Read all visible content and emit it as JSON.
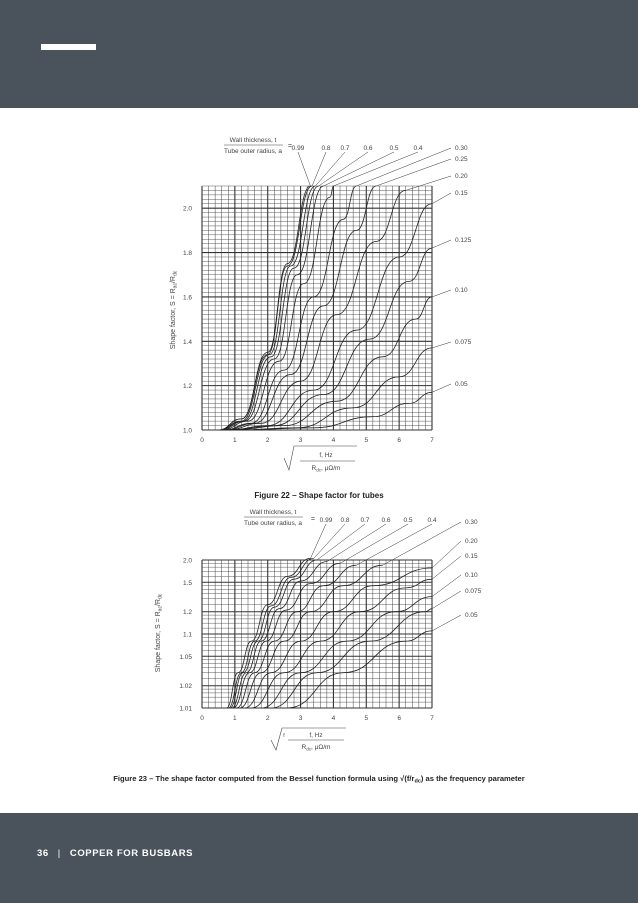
{
  "footer": {
    "page_number": "36",
    "separator": "|",
    "publication": "COPPER FOR BUSBARS"
  },
  "figures": [
    {
      "caption": "Figure 22 – Shape factor for tubes",
      "header_label_top": "Wall thickness, t",
      "header_label_bottom": "Tube outer radius, a",
      "equals": "=",
      "y_axis_label": "Shape factor, S = R",
      "y_axis_sub1": "ac",
      "y_axis_slash": "/R",
      "y_axis_sub2": "dc",
      "x_param_top": "f, Hz",
      "x_param_bottom_pre": "R",
      "x_param_bottom_sub": "dc",
      "x_param_bottom_post": ", μΩ/m",
      "chart_data": {
        "type": "line",
        "xlim": [
          0,
          7
        ],
        "ylim": [
          1.0,
          2.1
        ],
        "x_ticks": [
          "0",
          "1",
          "2",
          "3",
          "4",
          "5",
          "6",
          "7"
        ],
        "y_ticks": [
          {
            "value": 1.0,
            "label": "1.0"
          },
          {
            "value": 1.2,
            "label": "1.2"
          },
          {
            "value": 1.4,
            "label": "1.4"
          },
          {
            "value": 1.6,
            "label": "1.6"
          },
          {
            "value": 1.8,
            "label": "1.8"
          },
          {
            "value": 2.0,
            "label": "2.0"
          }
        ],
        "grid": true,
        "series": [
          {
            "name": "0.99",
            "points": [
              [
                0.5,
                1.0
              ],
              [
                1.2,
                1.05
              ],
              [
                2.0,
                1.35
              ],
              [
                2.6,
                1.75
              ],
              [
                3.3,
                2.1
              ]
            ]
          },
          {
            "name": "0.8",
            "points": [
              [
                0.5,
                1.0
              ],
              [
                1.2,
                1.05
              ],
              [
                2.0,
                1.34
              ],
              [
                2.6,
                1.74
              ],
              [
                3.35,
                2.1
              ]
            ]
          },
          {
            "name": "0.7",
            "points": [
              [
                0.5,
                1.0
              ],
              [
                1.2,
                1.04
              ],
              [
                2.05,
                1.34
              ],
              [
                2.7,
                1.74
              ],
              [
                3.45,
                2.1
              ]
            ]
          },
          {
            "name": "0.6",
            "points": [
              [
                0.5,
                1.0
              ],
              [
                1.25,
                1.04
              ],
              [
                2.1,
                1.33
              ],
              [
                2.8,
                1.73
              ],
              [
                3.55,
                2.1
              ]
            ]
          },
          {
            "name": "0.5",
            "points": [
              [
                0.55,
                1.0
              ],
              [
                1.3,
                1.04
              ],
              [
                2.2,
                1.32
              ],
              [
                2.9,
                1.7
              ],
              [
                3.7,
                2.1
              ]
            ]
          },
          {
            "name": "0.4",
            "points": [
              [
                0.6,
                1.0
              ],
              [
                1.4,
                1.04
              ],
              [
                2.35,
                1.31
              ],
              [
                3.1,
                1.66
              ],
              [
                3.9,
                2.05
              ],
              [
                4.0,
                2.1
              ]
            ]
          },
          {
            "name": "0.30",
            "points": [
              [
                0.65,
                1.0
              ],
              [
                1.5,
                1.03
              ],
              [
                2.5,
                1.27
              ],
              [
                3.4,
                1.6
              ],
              [
                4.3,
                1.95
              ],
              [
                4.7,
                2.1
              ]
            ]
          },
          {
            "name": "0.25",
            "points": [
              [
                0.7,
                1.0
              ],
              [
                1.6,
                1.03
              ],
              [
                2.7,
                1.25
              ],
              [
                3.7,
                1.56
              ],
              [
                4.7,
                1.9
              ],
              [
                5.3,
                2.1
              ]
            ]
          },
          {
            "name": "0.20",
            "points": [
              [
                0.75,
                1.0
              ],
              [
                1.8,
                1.03
              ],
              [
                3.0,
                1.22
              ],
              [
                4.1,
                1.52
              ],
              [
                5.3,
                1.85
              ],
              [
                6.2,
                2.08
              ]
            ]
          },
          {
            "name": "0.15",
            "points": [
              [
                0.8,
                1.0
              ],
              [
                2.0,
                1.02
              ],
              [
                3.4,
                1.18
              ],
              [
                4.7,
                1.45
              ],
              [
                6.0,
                1.78
              ],
              [
                7.0,
                2.02
              ]
            ]
          },
          {
            "name": "0.125",
            "points": [
              [
                0.85,
                1.0
              ],
              [
                2.2,
                1.02
              ],
              [
                3.7,
                1.16
              ],
              [
                5.1,
                1.41
              ],
              [
                6.3,
                1.67
              ],
              [
                7.0,
                1.82
              ]
            ]
          },
          {
            "name": "0.10",
            "points": [
              [
                0.9,
                1.0
              ],
              [
                2.5,
                1.02
              ],
              [
                4.1,
                1.13
              ],
              [
                5.5,
                1.33
              ],
              [
                6.5,
                1.5
              ],
              [
                7.0,
                1.6
              ]
            ]
          },
          {
            "name": "0.075",
            "points": [
              [
                1.0,
                1.0
              ],
              [
                2.9,
                1.01
              ],
              [
                4.6,
                1.1
              ],
              [
                6.0,
                1.24
              ],
              [
                7.0,
                1.37
              ]
            ]
          },
          {
            "name": "0.05",
            "points": [
              [
                1.1,
                1.0
              ],
              [
                3.4,
                1.01
              ],
              [
                5.2,
                1.06
              ],
              [
                6.3,
                1.12
              ],
              [
                7.0,
                1.17
              ]
            ]
          }
        ]
      }
    },
    {
      "caption": "Figure 23 – The shape factor computed from the Bessel function formula using √(f/r",
      "caption_sub": "dc",
      "caption_end": ") as the frequency parameter",
      "header_label_top": "Wall thickness, t",
      "header_label_bottom": "Tube outer radius, a",
      "equals": "=",
      "y_axis_label": "Shape factor, S = R",
      "y_axis_sub1": "ac",
      "y_axis_slash": "/R",
      "y_axis_sub2": "dc",
      "x_param_top": "f, Hz",
      "x_param_bottom_pre": "R",
      "x_param_bottom_sub": "dc",
      "x_param_bottom_post": ", μΩ/m",
      "x_param_small": "f",
      "chart_data": {
        "type": "line",
        "xlim": [
          0,
          7
        ],
        "y_scale": "log(S-1)",
        "ylim": [
          1.01,
          2.0
        ],
        "x_ticks": [
          "0",
          "1",
          "2",
          "3",
          "4",
          "5",
          "6",
          "7"
        ],
        "y_ticks": [
          {
            "value": 1.01,
            "label": "1.01"
          },
          {
            "value": 1.02,
            "label": "1.02"
          },
          {
            "value": 1.05,
            "label": "1.05"
          },
          {
            "value": 1.1,
            "label": "1.1"
          },
          {
            "value": 1.2,
            "label": "1.2"
          },
          {
            "value": 1.5,
            "label": "1.5"
          },
          {
            "value": 2.0,
            "label": "2.0"
          }
        ],
        "grid": true,
        "series": [
          {
            "name": "0.99",
            "points": [
              [
                0.75,
                1.01
              ],
              [
                1.1,
                1.03
              ],
              [
                1.5,
                1.08
              ],
              [
                2.0,
                1.25
              ],
              [
                2.6,
                1.6
              ],
              [
                3.3,
                2.05
              ]
            ]
          },
          {
            "name": "0.8",
            "points": [
              [
                0.8,
                1.01
              ],
              [
                1.2,
                1.03
              ],
              [
                1.6,
                1.08
              ],
              [
                2.1,
                1.24
              ],
              [
                2.7,
                1.58
              ],
              [
                3.4,
                2.05
              ]
            ]
          },
          {
            "name": "0.7",
            "points": [
              [
                0.85,
                1.01
              ],
              [
                1.25,
                1.03
              ],
              [
                1.7,
                1.08
              ],
              [
                2.2,
                1.23
              ],
              [
                2.8,
                1.55
              ],
              [
                3.5,
                2.0
              ]
            ]
          },
          {
            "name": "0.6",
            "points": [
              [
                0.9,
                1.01
              ],
              [
                1.35,
                1.03
              ],
              [
                1.8,
                1.08
              ],
              [
                2.35,
                1.22
              ],
              [
                3.0,
                1.52
              ],
              [
                3.8,
                1.95
              ]
            ]
          },
          {
            "name": "0.5",
            "points": [
              [
                0.95,
                1.01
              ],
              [
                1.45,
                1.03
              ],
              [
                1.95,
                1.08
              ],
              [
                2.55,
                1.21
              ],
              [
                3.3,
                1.48
              ],
              [
                4.2,
                1.9
              ]
            ]
          },
          {
            "name": "0.4",
            "points": [
              [
                1.05,
                1.01
              ],
              [
                1.6,
                1.03
              ],
              [
                2.2,
                1.08
              ],
              [
                2.9,
                1.2
              ],
              [
                3.7,
                1.45
              ],
              [
                4.7,
                1.85
              ]
            ]
          },
          {
            "name": "0.30",
            "points": [
              [
                1.15,
                1.01
              ],
              [
                1.8,
                1.03
              ],
              [
                2.5,
                1.08
              ],
              [
                3.3,
                1.2
              ],
              [
                4.3,
                1.45
              ],
              [
                5.5,
                1.85
              ]
            ]
          },
          {
            "name": "0.20",
            "points": [
              [
                1.3,
                1.01
              ],
              [
                2.1,
                1.03
              ],
              [
                3.0,
                1.08
              ],
              [
                4.0,
                1.2
              ],
              [
                5.2,
                1.45
              ],
              [
                7.0,
                1.78
              ]
            ]
          },
          {
            "name": "0.15",
            "points": [
              [
                1.5,
                1.01
              ],
              [
                2.5,
                1.03
              ],
              [
                3.6,
                1.08
              ],
              [
                4.8,
                1.2
              ],
              [
                6.2,
                1.42
              ],
              [
                7.0,
                1.55
              ]
            ]
          },
          {
            "name": "0.10",
            "points": [
              [
                1.8,
                1.01
              ],
              [
                3.0,
                1.03
              ],
              [
                4.4,
                1.08
              ],
              [
                5.9,
                1.2
              ],
              [
                7.0,
                1.32
              ]
            ]
          },
          {
            "name": "0.075",
            "points": [
              [
                2.1,
                1.01
              ],
              [
                3.5,
                1.03
              ],
              [
                5.1,
                1.08
              ],
              [
                6.8,
                1.2
              ],
              [
                7.0,
                1.22
              ]
            ]
          },
          {
            "name": "0.05",
            "points": [
              [
                2.6,
                1.01
              ],
              [
                4.3,
                1.03
              ],
              [
                6.2,
                1.08
              ],
              [
                7.0,
                1.11
              ]
            ]
          }
        ]
      }
    }
  ]
}
